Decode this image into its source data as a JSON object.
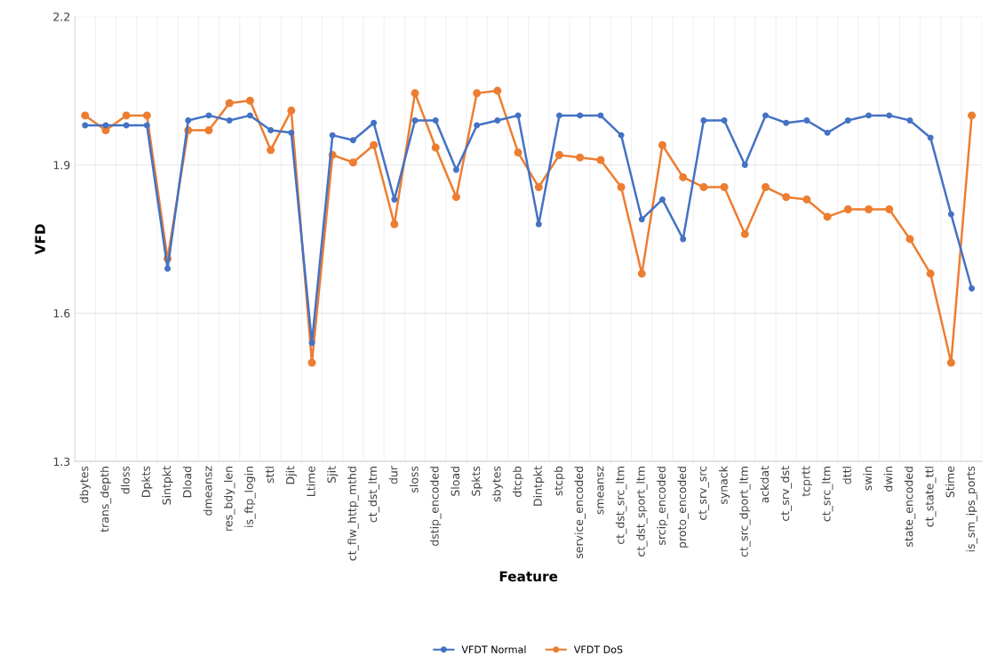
{
  "chart_data": {
    "type": "line",
    "xlabel": "Feature",
    "ylabel": "VFD",
    "categories": [
      "dbytes",
      "trans_depth",
      "dloss",
      "Dpkts",
      "Sintpkt",
      "Dload",
      "dmeansz",
      "res_bdy_len",
      "is_ftp_login",
      "sttl",
      "Djit",
      "Ltime",
      "Sjit",
      "ct_flw_http_mthd",
      "ct_dst_ltm",
      "dur",
      "sloss",
      "dstip_encoded",
      "Sload",
      "Spkts",
      "sbytes",
      "dtcpb",
      "Dintpkt",
      "stcpb",
      "service_encoded",
      "smeansz",
      "ct_dst_src_ltm",
      "ct_dst_sport_ltm",
      "srcip_encoded",
      "proto_encoded",
      "ct_srv_src",
      "synack",
      "ct_src_dport_ltm",
      "ackdat",
      "ct_srv_dst",
      "tcprtt",
      "ct_src_ltm",
      "dttl",
      "swin",
      "dwin",
      "state_encoded",
      "ct_state_ttl",
      "Stime",
      "is_sm_ips_ports"
    ],
    "series": [
      {
        "name": "VFDT Normal",
        "color": "#4472c4",
        "values": [
          1.98,
          1.98,
          1.98,
          1.98,
          1.69,
          1.99,
          2.0,
          1.99,
          2.0,
          1.97,
          1.965,
          1.54,
          1.96,
          1.95,
          1.985,
          1.83,
          1.99,
          1.99,
          1.89,
          1.98,
          1.99,
          2.0,
          1.78,
          2.0,
          2.0,
          2.0,
          1.96,
          1.79,
          1.83,
          1.75,
          1.99,
          1.99,
          1.9,
          2.0,
          1.985,
          1.99,
          1.965,
          1.99,
          2.0,
          2.0,
          1.99,
          1.955,
          1.8,
          1.65
        ]
      },
      {
        "name": "VFDT DoS",
        "color": "#ed7d31",
        "values": [
          2.0,
          1.97,
          2.0,
          2.0,
          1.71,
          1.97,
          1.97,
          2.025,
          2.03,
          1.93,
          2.01,
          1.5,
          1.92,
          1.905,
          1.94,
          1.78,
          2.045,
          1.935,
          1.835,
          2.045,
          2.05,
          1.925,
          1.855,
          1.92,
          1.915,
          1.91,
          1.855,
          1.68,
          1.94,
          1.875,
          1.855,
          1.855,
          1.76,
          1.855,
          1.835,
          1.83,
          1.795,
          1.81,
          1.81,
          1.81,
          1.75,
          1.68,
          1.5,
          2.0
        ]
      }
    ],
    "ylim": [
      1.3,
      2.2
    ],
    "yticks": [
      {
        "value": 1.3,
        "label": "1.3"
      },
      {
        "value": 1.6,
        "label": "1.6"
      },
      {
        "value": 1.9,
        "label": "1.9"
      },
      {
        "value": 2.2,
        "label": "2.2"
      }
    ],
    "grid": true,
    "legend": "bottom",
    "marker": "circle",
    "line_style": "solid"
  }
}
